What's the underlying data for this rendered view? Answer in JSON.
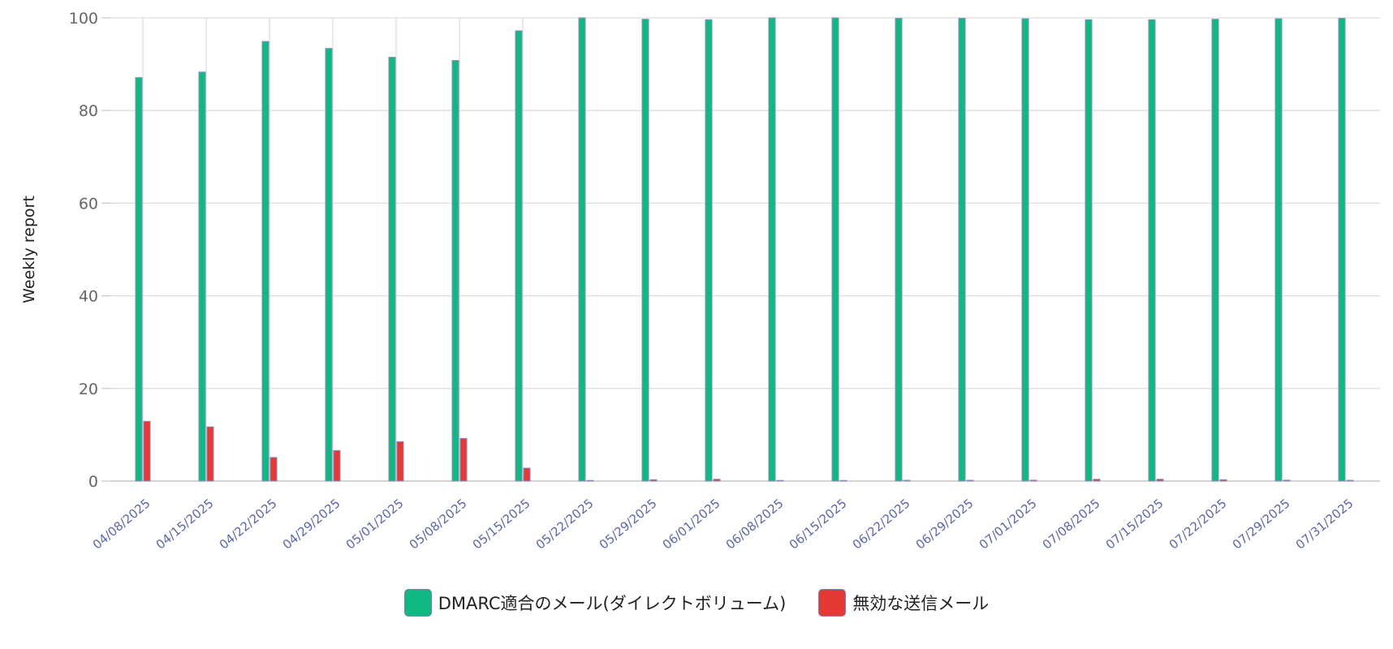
{
  "chart_data": {
    "type": "bar",
    "ylabel": "Weekly report",
    "xlabel": "",
    "title": "",
    "ylim": [
      0,
      100
    ],
    "yticks": [
      0,
      20,
      40,
      60,
      80,
      100
    ],
    "grid": true,
    "legend_position": "bottom",
    "categories": [
      "04/08/2025",
      "04/15/2025",
      "04/22/2025",
      "04/29/2025",
      "05/01/2025",
      "05/08/2025",
      "05/15/2025",
      "05/22/2025",
      "05/29/2025",
      "06/01/2025",
      "06/08/2025",
      "06/15/2025",
      "06/22/2025",
      "06/29/2025",
      "07/01/2025",
      "07/08/2025",
      "07/15/2025",
      "07/22/2025",
      "07/29/2025",
      "07/31/2025"
    ],
    "series": [
      {
        "name": "DMARC適合のメール(ダイレクトボリューム)",
        "color": "#10b981",
        "values": [
          87.1,
          88.3,
          94.9,
          93.4,
          91.5,
          90.8,
          97.2,
          100,
          99.7,
          99.6,
          100,
          100,
          99.9,
          99.9,
          99.8,
          99.6,
          99.6,
          99.7,
          99.8,
          99.9
        ]
      },
      {
        "name": "無効な送信メール",
        "color": "#e53935",
        "values": [
          12.9,
          11.7,
          5.1,
          6.6,
          8.5,
          9.2,
          2.8,
          0.0,
          0.3,
          0.4,
          0.0,
          0.0,
          0.1,
          0.1,
          0.2,
          0.4,
          0.4,
          0.3,
          0.2,
          0.1
        ]
      }
    ]
  }
}
